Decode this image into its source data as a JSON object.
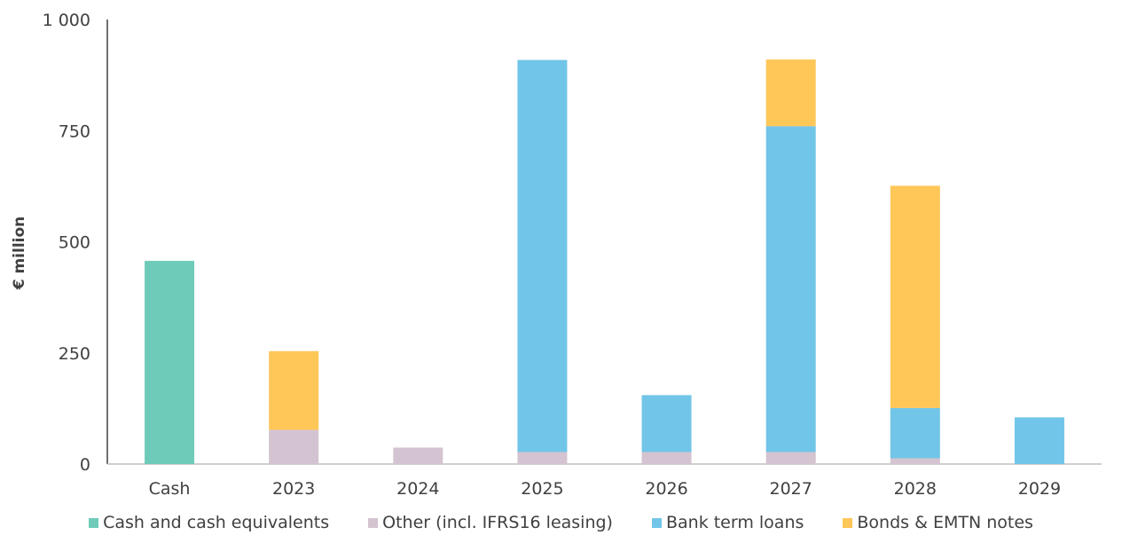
{
  "chart_data": {
    "type": "bar",
    "stacked": true,
    "title": "",
    "xlabel": "",
    "ylabel": "€ million",
    "ylim": [
      0,
      1000
    ],
    "yticks": [
      0,
      250,
      500,
      750,
      1000
    ],
    "ytick_labels": [
      "0",
      "250",
      "500",
      "750",
      "1 000"
    ],
    "categories": [
      "Cash",
      "2023",
      "2024",
      "2025",
      "2026",
      "2027",
      "2028",
      "2029"
    ],
    "series": [
      {
        "name": "Cash and cash equivalents",
        "color": "#6ecbb9",
        "values": [
          457,
          0,
          0,
          0,
          0,
          0,
          0,
          0
        ]
      },
      {
        "name": "Other (incl. IFRS16 leasing)",
        "color": "#d4c3d0",
        "values": [
          0,
          77,
          37,
          27,
          27,
          27,
          13,
          0
        ]
      },
      {
        "name": "Bank term loans",
        "color": "#71c5e8",
        "values": [
          0,
          0,
          0,
          882,
          128,
          733,
          113,
          105
        ]
      },
      {
        "name": "Bonds & EMTN notes",
        "color": "#ffc658",
        "values": [
          0,
          177,
          0,
          0,
          0,
          150,
          500,
          0
        ]
      }
    ],
    "grid": false,
    "legend_position": "bottom"
  }
}
